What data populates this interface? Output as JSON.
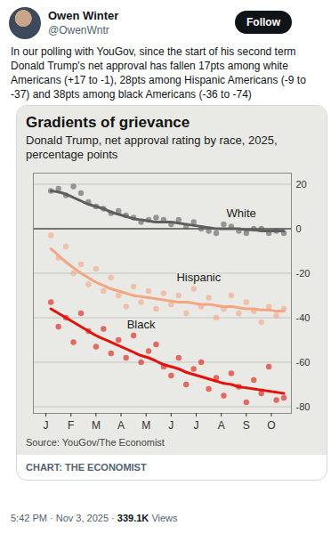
{
  "tweet": {
    "name": "Owen Winter",
    "handle": "@OwenWntr",
    "button": "Follow",
    "text": "In our polling with YouGov, since the start of his second term Donald Trump's net approval has fallen 17pts among white Americans (+17 to -1), 28pts among Hispanic Americans (-9 to -37) and 38pts among black Americans (-36 to -74)",
    "credit": "CHART: THE ECONOMIST",
    "time": "5:42 PM · Nov 3, 2025 ·",
    "views": "339.1K",
    "views_label": "Views"
  },
  "chart_data": {
    "type": "scatter",
    "title": "Gradients of grievance",
    "subtitle": "Donald Trump, net approval rating by race, 2025, percentage points",
    "source": "Source: YouGov/The Economist",
    "x": [
      0.7,
      1.0,
      1.3,
      1.6,
      1.9,
      2.2,
      2.5,
      2.8,
      3.1,
      3.4,
      3.7,
      4.0,
      4.3,
      4.6,
      4.9,
      5.2,
      5.5,
      5.8,
      6.1,
      6.4,
      6.7,
      7.0,
      7.3,
      7.6,
      7.9,
      8.2,
      8.5,
      8.8,
      9.1,
      9.4,
      9.7,
      10.0
    ],
    "series": [
      {
        "name": "White",
        "color": "#5e5e5e",
        "label_x": 8.3,
        "label_y": 7,
        "values": [
          17,
          18,
          15,
          19,
          16,
          12,
          10,
          9,
          7,
          8,
          6,
          5,
          3,
          4,
          5,
          4,
          2,
          4,
          1,
          3,
          0,
          -1,
          -2,
          2,
          1,
          -1,
          -2,
          0,
          0,
          -2,
          -1,
          -2
        ],
        "trend": [
          17,
          16.5,
          15.5,
          14,
          12.5,
          11,
          10,
          9,
          7.5,
          6.5,
          5.5,
          4.5,
          4,
          3.5,
          3,
          3,
          3,
          2.5,
          2,
          1.5,
          1,
          0.5,
          0,
          0,
          0,
          0,
          -0.5,
          -0.5,
          -1,
          -1,
          -1,
          -1
        ]
      },
      {
        "name": "Hispanic",
        "color": "#f4a582",
        "label_x": 6.6,
        "label_y": -22,
        "values": [
          -3,
          -13,
          -8,
          -20,
          -16,
          -25,
          -18,
          -28,
          -22,
          -30,
          -35,
          -26,
          -33,
          -28,
          -36,
          -29,
          -34,
          -30,
          -38,
          -27,
          -35,
          -31,
          -40,
          -36,
          -30,
          -38,
          -33,
          -37,
          -42,
          -35,
          -39,
          -36
        ],
        "trend": [
          -9,
          -12,
          -15,
          -17.5,
          -20,
          -22,
          -24,
          -25.5,
          -27,
          -28,
          -29,
          -30,
          -30.5,
          -31,
          -31.5,
          -32,
          -32.5,
          -33,
          -33,
          -33.5,
          -34,
          -34,
          -34.5,
          -35,
          -35,
          -35.5,
          -36,
          -36,
          -36.5,
          -36.5,
          -37,
          -37
        ]
      },
      {
        "name": "Black",
        "color": "#e3120b",
        "label_x": 4.3,
        "label_y": -43,
        "values": [
          -33,
          -44,
          -40,
          -51,
          -38,
          -46,
          -53,
          -45,
          -56,
          -50,
          -58,
          -48,
          -60,
          -55,
          -52,
          -62,
          -66,
          -58,
          -70,
          -63,
          -60,
          -72,
          -67,
          -75,
          -65,
          -71,
          -78,
          -68,
          -74,
          -62,
          -77,
          -76
        ],
        "trend": [
          -36,
          -38,
          -40,
          -42,
          -44,
          -46,
          -48,
          -49.5,
          -51,
          -52.5,
          -54,
          -55.5,
          -57,
          -58,
          -59.5,
          -61,
          -62,
          -63,
          -64.5,
          -65.5,
          -66.5,
          -67.5,
          -68.5,
          -69.5,
          -70,
          -71,
          -71.5,
          -72,
          -72.5,
          -73,
          -73.5,
          -74
        ]
      }
    ],
    "xlim": [
      0,
      10.3
    ],
    "xticks": [
      {
        "value": 0.5,
        "label": "J"
      },
      {
        "value": 1.5,
        "label": "F"
      },
      {
        "value": 2.5,
        "label": "M"
      },
      {
        "value": 3.5,
        "label": "A"
      },
      {
        "value": 4.5,
        "label": "M"
      },
      {
        "value": 5.5,
        "label": "J"
      },
      {
        "value": 6.5,
        "label": "J"
      },
      {
        "value": 7.5,
        "label": "A"
      },
      {
        "value": 8.5,
        "label": "S"
      },
      {
        "value": 9.5,
        "label": "O"
      }
    ],
    "ylim": [
      -83,
      25
    ],
    "yticks": [
      20,
      0,
      -20,
      -40,
      -60,
      -80
    ],
    "grid": true
  }
}
